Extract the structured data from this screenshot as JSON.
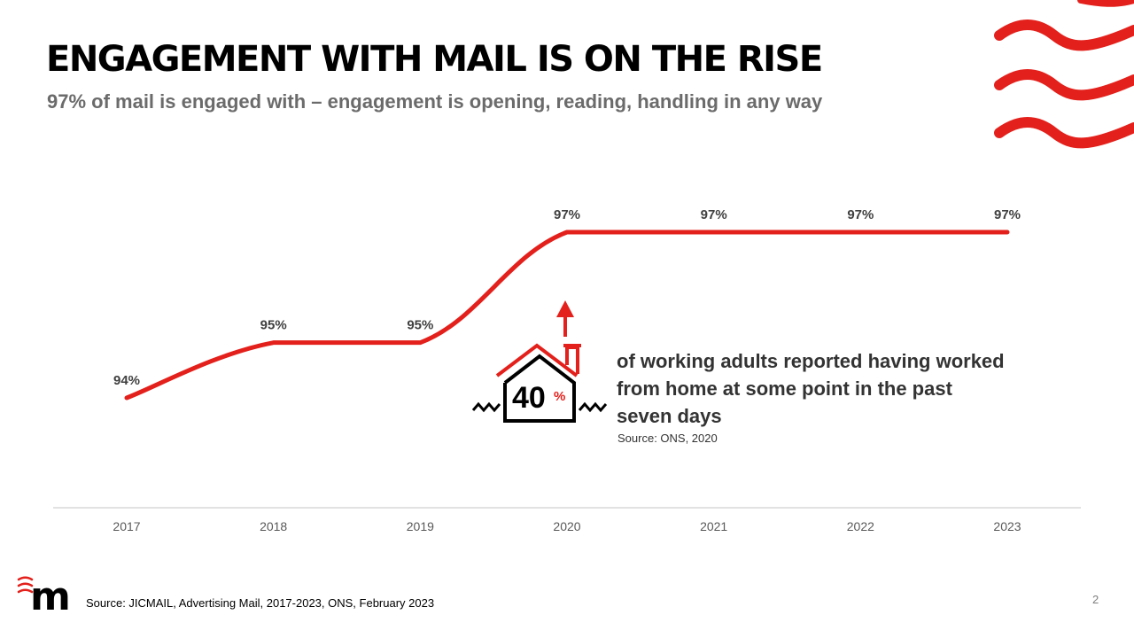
{
  "header": {
    "title": "ENGAGEMENT WITH MAIL IS ON THE RISE",
    "subtitle": "97% of mail is engaged with – engagement is opening, reading, handling in any way"
  },
  "chart_data": {
    "type": "line",
    "categories": [
      "2017",
      "2018",
      "2019",
      "2020",
      "2021",
      "2022",
      "2023"
    ],
    "values": [
      94,
      95,
      95,
      97,
      97,
      97,
      97
    ],
    "data_labels": [
      "94%",
      "95%",
      "95%",
      "97%",
      "97%",
      "97%",
      "97%"
    ],
    "title": "",
    "xlabel": "",
    "ylabel": "",
    "smooth": true,
    "grid": false,
    "legend": "none"
  },
  "callout": {
    "icon": "house-icon",
    "value": "40",
    "unit": "%",
    "text": "of working adults reported having worked from home at some point in the past seven days",
    "source": "Source: ONS, 2020"
  },
  "footer": {
    "source": "Source: JICMAIL, Advertising Mail, 2017-2023, ONS, February 2023",
    "page_number": "2",
    "logo_letter": "m"
  },
  "colors": {
    "accent": "#e3201b",
    "title": "#000000",
    "subtitle": "#6b6b6b",
    "axis": "#d9d9d9",
    "labels": "#404040"
  }
}
